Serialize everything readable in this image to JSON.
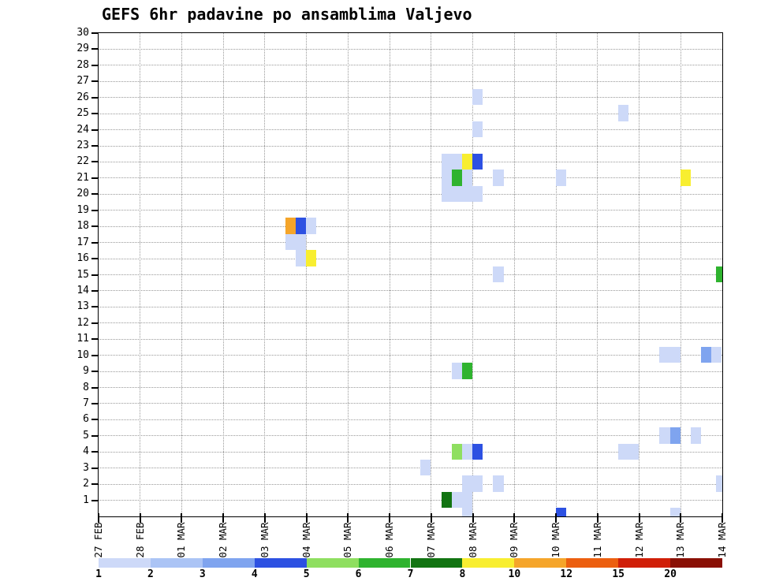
{
  "title": "GEFS 6hr padavine po ansamblima Valjevo",
  "style": {
    "background": "#ffffff",
    "axis_color": "#000000",
    "grid_color": "#999999"
  },
  "chart_data": {
    "type": "heatmap",
    "title": "GEFS 6hr padavine po ansamblima Valjevo",
    "x_axis": {
      "tick_labels": [
        "27 FEB",
        "28 FEB",
        "01 MAR",
        "02 MAR",
        "03 MAR",
        "04 MAR",
        "05 MAR",
        "06 MAR",
        "07 MAR",
        "08 MAR",
        "09 MAR",
        "10 MAR",
        "11 MAR",
        "12 MAR",
        "13 MAR",
        "14 MAR"
      ],
      "range_days": [
        0,
        15
      ],
      "step_days": 0.25
    },
    "y_axis": {
      "tick_labels": [
        1,
        2,
        3,
        4,
        5,
        6,
        7,
        8,
        9,
        10,
        11,
        12,
        13,
        14,
        15,
        16,
        17,
        18,
        19,
        20,
        21,
        22,
        23,
        24,
        25,
        26,
        27,
        28,
        29,
        30
      ],
      "range": [
        0,
        30
      ]
    },
    "grid": {
      "show": true,
      "style": "dotted"
    },
    "legend_position": "bottom",
    "colorbar": {
      "tick_labels": [
        "1",
        "2",
        "3",
        "4",
        "5",
        "6",
        "7",
        "8",
        "10",
        "12",
        "15",
        "20"
      ],
      "colors": [
        "#cdd9f8",
        "#abc4f5",
        "#7fa4ef",
        "#2d51e2",
        "#8fdf60",
        "#2fb32f",
        "#127412",
        "#f8ee30",
        "#f5a52a",
        "#ec5f10",
        "#d01f08",
        "#8a1005"
      ]
    },
    "cells_format": [
      "day_offset_from_27FEB",
      "ensemble_member",
      "color_index_1_based"
    ],
    "cells": [
      [
        4.5,
        18,
        9
      ],
      [
        4.75,
        18,
        4
      ],
      [
        5,
        18,
        1
      ],
      [
        4.5,
        17,
        1
      ],
      [
        4.75,
        17,
        1
      ],
      [
        4.75,
        16,
        1
      ],
      [
        5,
        16,
        8
      ],
      [
        8.25,
        22,
        1
      ],
      [
        8.5,
        22,
        1
      ],
      [
        8.75,
        22,
        8
      ],
      [
        9,
        22,
        4
      ],
      [
        8.25,
        21,
        1
      ],
      [
        8.5,
        21,
        6
      ],
      [
        8.75,
        21,
        1
      ],
      [
        9.5,
        21,
        1
      ],
      [
        8.25,
        20,
        1
      ],
      [
        8.5,
        20,
        1
      ],
      [
        8.75,
        20,
        1
      ],
      [
        9,
        20,
        1
      ],
      [
        9,
        26,
        1
      ],
      [
        9,
        24,
        1
      ],
      [
        12.5,
        25,
        1
      ],
      [
        11,
        21,
        1
      ],
      [
        14,
        21,
        8
      ],
      [
        9.5,
        15,
        1
      ],
      [
        14.85,
        15,
        6
      ],
      [
        13.5,
        10,
        1
      ],
      [
        13.75,
        10,
        1
      ],
      [
        14.5,
        10,
        3
      ],
      [
        14.75,
        10,
        1
      ],
      [
        8.5,
        9,
        1
      ],
      [
        8.75,
        9,
        6
      ],
      [
        13.5,
        5,
        1
      ],
      [
        13.75,
        5,
        3
      ],
      [
        14.25,
        5,
        1
      ],
      [
        8.5,
        4,
        5
      ],
      [
        8.75,
        4,
        1
      ],
      [
        9,
        4,
        4
      ],
      [
        12.5,
        4,
        1
      ],
      [
        12.75,
        4,
        1
      ],
      [
        7.75,
        3,
        1
      ],
      [
        8.75,
        2,
        1
      ],
      [
        9,
        2,
        1
      ],
      [
        9.5,
        2,
        1
      ],
      [
        14.85,
        2,
        1
      ],
      [
        8.25,
        1,
        7
      ],
      [
        8.5,
        1,
        1
      ],
      [
        8.75,
        1,
        1
      ],
      [
        8.75,
        0,
        1
      ],
      [
        11,
        0,
        4
      ],
      [
        13.75,
        0,
        1
      ]
    ]
  }
}
